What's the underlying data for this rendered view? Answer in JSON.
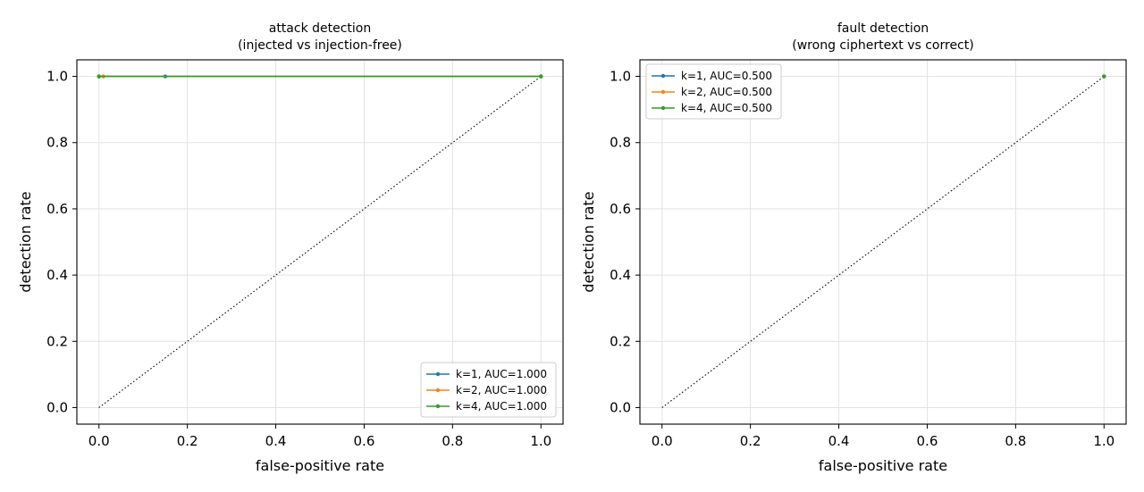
{
  "chart_data": [
    {
      "type": "line",
      "title": "attack detection",
      "subtitle": "(injected vs injection-free)",
      "xlabel": "false-positive rate",
      "ylabel": "detection rate",
      "xlim": [
        -0.05,
        1.05
      ],
      "ylim": [
        -0.05,
        1.05
      ],
      "xticks": [
        "0.0",
        "0.2",
        "0.4",
        "0.6",
        "0.8",
        "1.0"
      ],
      "yticks": [
        "0.0",
        "0.2",
        "0.4",
        "0.6",
        "0.8",
        "1.0"
      ],
      "grid": true,
      "legend_position": "lower-right",
      "diagonal": true,
      "series": [
        {
          "name": "k=1, AUC=1.000",
          "color": "#1f77b4",
          "x": [
            0.0,
            0.15,
            1.0
          ],
          "y": [
            1.0,
            1.0,
            1.0
          ]
        },
        {
          "name": "k=2, AUC=1.000",
          "color": "#ff7f0e",
          "x": [
            0.0,
            0.01,
            1.0
          ],
          "y": [
            1.0,
            1.0,
            1.0
          ]
        },
        {
          "name": "k=4, AUC=1.000",
          "color": "#2ca02c",
          "x": [
            0.0,
            1.0
          ],
          "y": [
            1.0,
            1.0
          ]
        }
      ]
    },
    {
      "type": "line",
      "title": "fault detection",
      "subtitle": "(wrong ciphertext vs correct)",
      "xlabel": "false-positive rate",
      "ylabel": "detection rate",
      "xlim": [
        -0.05,
        1.05
      ],
      "ylim": [
        -0.05,
        1.05
      ],
      "xticks": [
        "0.0",
        "0.2",
        "0.4",
        "0.6",
        "0.8",
        "1.0"
      ],
      "yticks": [
        "0.0",
        "0.2",
        "0.4",
        "0.6",
        "0.8",
        "1.0"
      ],
      "grid": true,
      "legend_position": "upper-left",
      "diagonal": true,
      "series": [
        {
          "name": "k=1, AUC=0.500",
          "color": "#1f77b4",
          "x": [
            1.0
          ],
          "y": [
            1.0
          ]
        },
        {
          "name": "k=2, AUC=0.500",
          "color": "#ff7f0e",
          "x": [
            1.0
          ],
          "y": [
            1.0
          ]
        },
        {
          "name": "k=4, AUC=0.500",
          "color": "#2ca02c",
          "x": [
            1.0
          ],
          "y": [
            1.0
          ]
        }
      ]
    }
  ]
}
